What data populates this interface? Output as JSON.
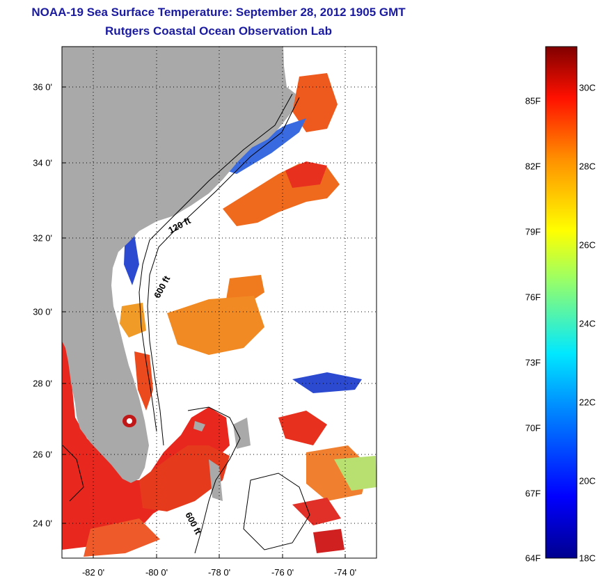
{
  "title_line1": "NOAA-19 Sea Surface Temperature:  September 28, 2012 1905 GMT",
  "title_line2": "Rutgers Coastal Ocean Observation Lab",
  "map": {
    "lat_labels": [
      "36 0'",
      "34 0'",
      "32 0'",
      "30 0'",
      "28 0'",
      "26 0'",
      "24 0'"
    ],
    "lon_labels": [
      "-82 0'",
      "-80 0'",
      "-78 0'",
      "-76 0'",
      "-74 0'"
    ],
    "contour_labels": [
      "120 ft",
      "600 ft",
      "600 ft"
    ],
    "colors": {
      "land": "#a9a9a9",
      "ocean_missing": "#ffffff",
      "warm": "#e8281e",
      "orange": "#f07a1e",
      "cold": "#1e3cc8"
    }
  },
  "colorbar": {
    "fahrenheit_labels": [
      "85F",
      "82F",
      "79F",
      "76F",
      "73F",
      "70F",
      "67F",
      "64F"
    ],
    "celsius_labels": [
      "30C",
      "28C",
      "26C",
      "24C",
      "22C",
      "20C",
      "18C"
    ],
    "colormap": "jet",
    "range_celsius": [
      18,
      31.5
    ]
  }
}
